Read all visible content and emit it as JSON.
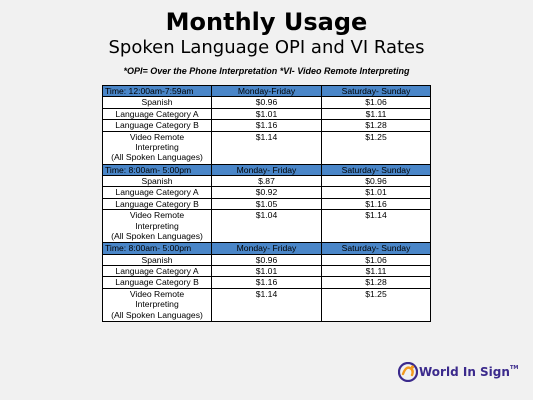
{
  "title": "Monthly Usage",
  "subtitle": "Spoken Language OPI and VI Rates",
  "note": "*OPI= Over the Phone Interpretation  *VI- Video Remote Interpreting",
  "sections": [
    {
      "time": "Time: 12:00am-7:59am",
      "weekday_label": "Monday-Friday",
      "weekend_label": "Saturday- Sunday",
      "rows": [
        {
          "name": "Spanish",
          "weekday": "$0.96",
          "weekend": "$1.06"
        },
        {
          "name": "Language Category A",
          "weekday": "$1.01",
          "weekend": "$1.11"
        },
        {
          "name": "Language Category B",
          "weekday": "$1.16",
          "weekend": "$1.28"
        }
      ],
      "vri": {
        "line1": "Video Remote",
        "line2": "Interpreting",
        "line3": "(All Spoken Languages)",
        "weekday": "$1.14",
        "weekend": "$1.25"
      }
    },
    {
      "time": "Time: 8:00am- 5:00pm",
      "weekday_label": "Monday- Friday",
      "weekend_label": "Saturday- Sunday",
      "rows": [
        {
          "name": "Spanish",
          "weekday": "$.87",
          "weekend": "$0.96"
        },
        {
          "name": "Language Category A",
          "weekday": "$0.92",
          "weekend": "$1.01"
        },
        {
          "name": "Language Category B",
          "weekday": "$1.05",
          "weekend": "$1.16"
        }
      ],
      "vri": {
        "line1": "Video Remote",
        "line2": "Interpreting",
        "line3": "(All Spoken Languages)",
        "weekday": "$1.04",
        "weekend": "$1.14"
      }
    },
    {
      "time": "Time: 8:00am- 5:00pm",
      "weekday_label": "Monday- Friday",
      "weekend_label": "Saturday- Sunday",
      "rows": [
        {
          "name": "Spanish",
          "weekday": "$0.96",
          "weekend": "$1.06"
        },
        {
          "name": "Language Category A",
          "weekday": "$1.01",
          "weekend": "$1.11"
        },
        {
          "name": "Language Category B",
          "weekday": "$1.16",
          "weekend": "$1.28"
        }
      ],
      "vri": {
        "line1": "Video Remote",
        "line2": "Interpreting",
        "line3": "(All Spoken Languages)",
        "weekday": "$1.14",
        "weekend": "$1.25"
      }
    }
  ],
  "logo": {
    "text": "World In Sign",
    "tm": "TM",
    "icon": "world-in-sign-logo-icon",
    "colors": {
      "purple": "#3b2a8c",
      "orange": "#f29a1f"
    }
  },
  "colors": {
    "header": "#4a86c8",
    "background": "#f1f1f1"
  }
}
